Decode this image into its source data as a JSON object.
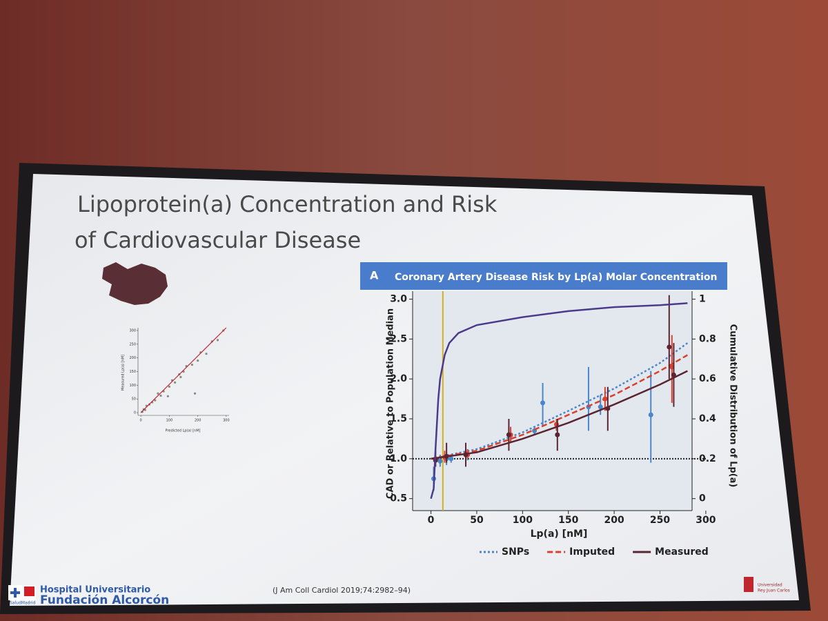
{
  "slide": {
    "title": [
      "Lipoprotein(a) Concentration and Risk",
      "of Cardiovascular Disease"
    ],
    "citation": "(J Am Coll Cardiol 2019;74:2982–94)",
    "hospital": [
      "Hospital Universitario",
      "Fundación Alcorcón"
    ],
    "region": "SaludMadrid",
    "university": [
      "Universidad",
      "Rey Juan Carlos"
    ]
  },
  "chart_data": [
    {
      "type": "line",
      "panel": "A",
      "title": "Coronary Artery Disease Risk by Lp(a) Molar Concentration",
      "xlabel": "Lp(a) [nM]",
      "ylabel": "CAD or Relative to Population Median",
      "y2label": "Cumulative Distribution of Lp(a)",
      "xlim": [
        -20,
        285
      ],
      "xticks": [
        0,
        50,
        100,
        150,
        200,
        250,
        300
      ],
      "ylim": [
        0.35,
        3.1
      ],
      "yticks": [
        0.5,
        {
          "value": 1,
          "label": "1.0"
        },
        1.5,
        {
          "value": 2,
          "label": "2.0"
        },
        2.5,
        {
          "value": 3,
          "label": "3.0"
        }
      ],
      "y2lim": [
        -0.06,
        1.04
      ],
      "y2ticks": [
        0,
        0.2,
        0.4,
        0.6,
        0.8,
        1
      ],
      "reference_y": 1,
      "reference_x": 13,
      "series": [
        {
          "name": "SNPs",
          "color": "#4a86c8",
          "style": "dotted",
          "x": [
            0,
            50,
            100,
            150,
            200,
            250,
            280
          ],
          "values": [
            1,
            1.12,
            1.33,
            1.6,
            1.88,
            2.2,
            2.45
          ],
          "points": {
            "x": [
              3,
              10,
              17,
              22,
              40,
              85,
              113,
              122,
              172,
              185,
              240
            ],
            "values": [
              0.75,
              0.97,
              1,
              1,
              1.05,
              1.3,
              1.35,
              1.7,
              1.65,
              1.65,
              1.55
            ],
            "low": [
              0.6,
              0.9,
              0.92,
              0.95,
              0.98,
              1.2,
              1.3,
              1.4,
              1.35,
              1.55,
              0.95
            ],
            "high": [
              0.9,
              1.05,
              1.08,
              1.05,
              1.12,
              1.4,
              1.4,
              1.95,
              2.15,
              1.8,
              2.1
            ]
          }
        },
        {
          "name": "Imputed",
          "color": "#d9412e",
          "style": "dashed",
          "x": [
            0,
            50,
            100,
            150,
            200,
            250,
            280
          ],
          "values": [
            1,
            1.1,
            1.3,
            1.55,
            1.8,
            2.1,
            2.3
          ],
          "points": {
            "x": [
              5,
              15,
              40,
              87,
              137,
              190,
              263
            ],
            "values": [
              1,
              1.02,
              1.05,
              1.3,
              1.43,
              1.75,
              2.15
            ],
            "low": [
              0.9,
              0.95,
              1,
              1.2,
              1.35,
              1.6,
              1.7
            ],
            "high": [
              1.1,
              1.1,
              1.12,
              1.4,
              1.5,
              1.9,
              2.55
            ]
          }
        },
        {
          "name": "Measured",
          "color": "#5a2430",
          "style": "solid",
          "x": [
            0,
            50,
            100,
            150,
            200,
            250,
            280
          ],
          "values": [
            1,
            1.08,
            1.25,
            1.45,
            1.68,
            1.93,
            2.1
          ],
          "points": {
            "x": [
              5,
              17,
              38,
              85,
              138,
              193,
              260,
              265
            ],
            "values": [
              0.98,
              1.03,
              1.05,
              1.3,
              1.3,
              1.63,
              2.4,
              2.05
            ],
            "low": [
              0.9,
              0.95,
              0.9,
              1.1,
              1.1,
              1.35,
              2,
              1.65
            ],
            "high": [
              1.1,
              1.2,
              1.2,
              1.5,
              1.5,
              1.9,
              3.05,
              2.45
            ]
          }
        },
        {
          "color": "#4b3a8c",
          "style": "solid",
          "axis": "y2",
          "x": [
            0,
            3,
            5,
            8,
            10,
            15,
            20,
            30,
            50,
            100,
            150,
            200,
            250,
            280
          ],
          "values": [
            0,
            0.05,
            0.25,
            0.5,
            0.6,
            0.72,
            0.78,
            0.83,
            0.87,
            0.91,
            0.94,
            0.96,
            0.97,
            0.98
          ]
        }
      ]
    },
    {
      "type": "scatter",
      "xlabel": "Predicted Lp(a) [nM]",
      "ylabel": "Measured Lp(a) [nM]",
      "xlim": [
        -10,
        310
      ],
      "xticks": [
        0,
        100,
        200,
        300
      ],
      "ylim": [
        -10,
        310
      ],
      "yticks": [
        0,
        50,
        100,
        150,
        200,
        250,
        300
      ],
      "color": "#888888",
      "fit_color": "#c0262d",
      "x": [
        5,
        10,
        15,
        20,
        30,
        40,
        50,
        60,
        70,
        80,
        100,
        110,
        120,
        135,
        150,
        160,
        180,
        200,
        210,
        230,
        250,
        270,
        290,
        95,
        190,
        140
      ],
      "values": [
        3,
        12,
        10,
        25,
        30,
        38,
        45,
        70,
        62,
        78,
        95,
        118,
        110,
        140,
        150,
        170,
        175,
        190,
        220,
        215,
        260,
        265,
        300,
        60,
        70,
        130
      ],
      "fit": {
        "x": [
          0,
          300
        ],
        "values": [
          0,
          310
        ]
      }
    }
  ]
}
